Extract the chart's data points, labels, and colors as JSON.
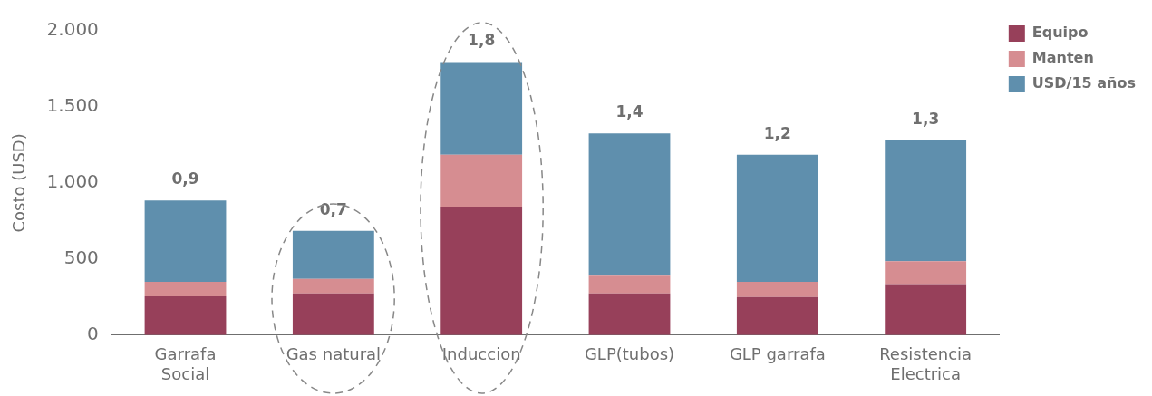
{
  "chart_data": {
    "type": "bar",
    "stacked": true,
    "ylabel": "Costo (USD)",
    "categories": [
      "Garrafa Social",
      "Gas natural",
      "Induccion",
      "GLP(tubos)",
      "GLP garrafa",
      "Resistencia Electrica"
    ],
    "series": [
      {
        "name": "Equipo",
        "color": "#97405a",
        "values": [
          255,
          275,
          845,
          275,
          250,
          335
        ]
      },
      {
        "name": "Manten",
        "color": "#d68d91",
        "values": [
          95,
          95,
          340,
          115,
          100,
          150
        ]
      },
      {
        "name": "USD/15 años",
        "color": "#5f8fad",
        "values": [
          535,
          315,
          610,
          935,
          835,
          795
        ]
      }
    ],
    "annotations": [
      {
        "text": "0,9",
        "x": "Garrafa Social",
        "y": 885
      },
      {
        "text": "0,7",
        "x": "Gas natural",
        "y": 685
      },
      {
        "text": "1,8",
        "x": "Induccion",
        "y": 1795
      },
      {
        "text": "1,4",
        "x": "GLP(tubos)",
        "y": 1325
      },
      {
        "text": "1,2",
        "x": "GLP garrafa",
        "y": 1185
      },
      {
        "text": "1,3",
        "x": "Resistencia Electrica",
        "y": 1280
      }
    ],
    "ylim": [
      0,
      2000
    ],
    "yticks": [
      0,
      500,
      {
        "value": 1000,
        "label": "1.000"
      },
      {
        "value": 1500,
        "label": "1.500"
      },
      {
        "value": 2000,
        "label": "2.000"
      }
    ],
    "grid": false,
    "legend": "top right"
  }
}
